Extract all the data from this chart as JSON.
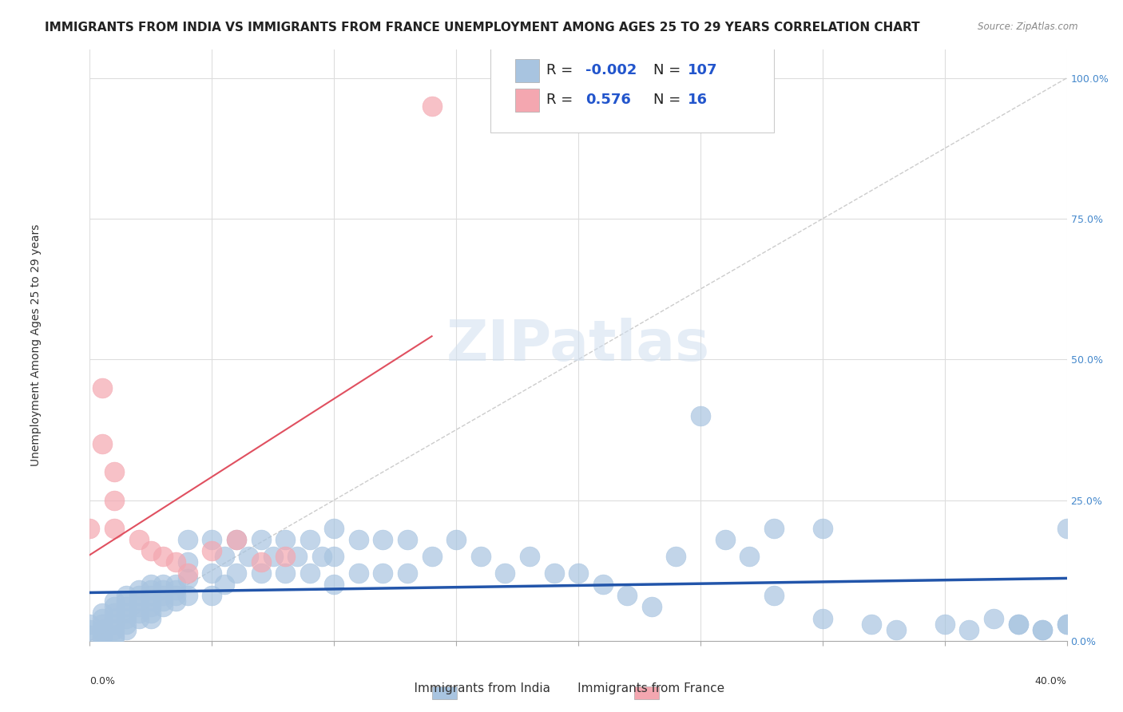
{
  "title": "IMMIGRANTS FROM INDIA VS IMMIGRANTS FROM FRANCE UNEMPLOYMENT AMONG AGES 25 TO 29 YEARS CORRELATION CHART",
  "source": "Source: ZipAtlas.com",
  "ylabel": "Unemployment Among Ages 25 to 29 years",
  "ytick_labels": [
    "0.0%",
    "25.0%",
    "50.0%",
    "75.0%",
    "100.0%"
  ],
  "ytick_values": [
    0,
    0.25,
    0.5,
    0.75,
    1.0
  ],
  "xlim": [
    0.0,
    0.4
  ],
  "ylim": [
    0.0,
    1.05
  ],
  "india_R": -0.002,
  "india_N": 107,
  "france_R": 0.576,
  "france_N": 16,
  "india_color": "#a8c4e0",
  "france_color": "#f4a7b0",
  "india_line_color": "#2255aa",
  "france_line_color": "#e05060",
  "india_x": [
    0.0,
    0.0,
    0.0,
    0.005,
    0.005,
    0.005,
    0.005,
    0.005,
    0.005,
    0.005,
    0.01,
    0.01,
    0.01,
    0.01,
    0.01,
    0.01,
    0.01,
    0.01,
    0.015,
    0.015,
    0.015,
    0.015,
    0.015,
    0.015,
    0.015,
    0.02,
    0.02,
    0.02,
    0.02,
    0.02,
    0.02,
    0.025,
    0.025,
    0.025,
    0.025,
    0.025,
    0.025,
    0.025,
    0.03,
    0.03,
    0.03,
    0.03,
    0.03,
    0.035,
    0.035,
    0.035,
    0.035,
    0.04,
    0.04,
    0.04,
    0.04,
    0.05,
    0.05,
    0.05,
    0.055,
    0.055,
    0.06,
    0.06,
    0.065,
    0.07,
    0.07,
    0.075,
    0.08,
    0.08,
    0.085,
    0.09,
    0.09,
    0.095,
    0.1,
    0.1,
    0.1,
    0.11,
    0.11,
    0.12,
    0.12,
    0.13,
    0.13,
    0.14,
    0.15,
    0.16,
    0.17,
    0.18,
    0.19,
    0.2,
    0.21,
    0.22,
    0.23,
    0.25,
    0.27,
    0.28,
    0.3,
    0.32,
    0.33,
    0.35,
    0.36,
    0.37,
    0.38,
    0.39,
    0.4,
    0.38,
    0.39,
    0.4,
    0.4,
    0.3,
    0.28,
    0.26,
    0.24
  ],
  "india_y": [
    0.03,
    0.02,
    0.01,
    0.05,
    0.04,
    0.03,
    0.02,
    0.015,
    0.01,
    0.005,
    0.07,
    0.06,
    0.05,
    0.04,
    0.03,
    0.02,
    0.01,
    0.005,
    0.08,
    0.07,
    0.06,
    0.05,
    0.04,
    0.03,
    0.02,
    0.09,
    0.08,
    0.07,
    0.06,
    0.05,
    0.04,
    0.1,
    0.09,
    0.08,
    0.07,
    0.06,
    0.05,
    0.04,
    0.1,
    0.09,
    0.08,
    0.07,
    0.06,
    0.1,
    0.09,
    0.08,
    0.07,
    0.18,
    0.14,
    0.11,
    0.08,
    0.18,
    0.12,
    0.08,
    0.15,
    0.1,
    0.18,
    0.12,
    0.15,
    0.18,
    0.12,
    0.15,
    0.18,
    0.12,
    0.15,
    0.18,
    0.12,
    0.15,
    0.2,
    0.15,
    0.1,
    0.18,
    0.12,
    0.18,
    0.12,
    0.18,
    0.12,
    0.15,
    0.18,
    0.15,
    0.12,
    0.15,
    0.12,
    0.12,
    0.1,
    0.08,
    0.06,
    0.4,
    0.15,
    0.08,
    0.04,
    0.03,
    0.02,
    0.03,
    0.02,
    0.04,
    0.03,
    0.02,
    0.03,
    0.03,
    0.02,
    0.03,
    0.2,
    0.2,
    0.2,
    0.18,
    0.15
  ],
  "france_x": [
    0.0,
    0.005,
    0.005,
    0.01,
    0.01,
    0.01,
    0.02,
    0.025,
    0.03,
    0.035,
    0.04,
    0.05,
    0.06,
    0.07,
    0.08,
    0.14
  ],
  "france_y": [
    0.2,
    0.35,
    0.45,
    0.3,
    0.25,
    0.2,
    0.18,
    0.16,
    0.15,
    0.14,
    0.12,
    0.16,
    0.18,
    0.14,
    0.15,
    0.95
  ],
  "background_color": "#ffffff",
  "grid_color": "#dddddd",
  "title_fontsize": 11,
  "axis_label_fontsize": 10,
  "tick_fontsize": 9,
  "legend_fontsize": 13,
  "r_value_color": "#2255cc"
}
